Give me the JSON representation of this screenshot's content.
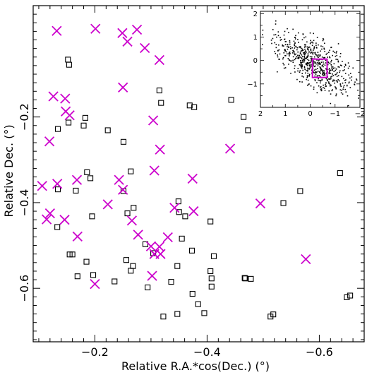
{
  "chart_data": [
    {
      "type": "scatter",
      "xlabel": "Relative R.A.*cos(Dec.) (°)",
      "ylabel": "Relative Dec. (°)",
      "xlim": [
        -0.09,
        -0.68
      ],
      "ylim": [
        -0.725,
        0.06
      ],
      "x_ticks": [
        -0.2,
        -0.4,
        -0.6
      ],
      "x_tick_labels": [
        "−0.2",
        "−0.4",
        "−0.6"
      ],
      "y_ticks": [
        -0.2,
        -0.4,
        -0.6
      ],
      "y_tick_labels": [
        "−0.2",
        "−0.4",
        "−0.6"
      ],
      "grid": false,
      "series": [
        {
          "marker": "open-square",
          "color": "#000000",
          "points": [
            [
              -0.152,
              -0.066
            ],
            [
              -0.154,
              -0.078
            ],
            [
              -0.183,
              -0.202
            ],
            [
              -0.134,
              -0.228
            ],
            [
              -0.153,
              -0.213
            ],
            [
              -0.223,
              -0.231
            ],
            [
              -0.18,
              -0.22
            ],
            [
              -0.318,
              -0.167
            ],
            [
              -0.315,
              -0.138
            ],
            [
              -0.369,
              -0.173
            ],
            [
              -0.377,
              -0.177
            ],
            [
              -0.443,
              -0.16
            ],
            [
              -0.473,
              -0.231
            ],
            [
              -0.465,
              -0.2
            ],
            [
              -0.251,
              -0.258
            ],
            [
              -0.186,
              -0.329
            ],
            [
              -0.134,
              -0.369
            ],
            [
              -0.166,
              -0.372
            ],
            [
              -0.192,
              -0.343
            ],
            [
              -0.264,
              -0.327
            ],
            [
              -0.251,
              -0.373
            ],
            [
              -0.269,
              -0.412
            ],
            [
              -0.258,
              -0.425
            ],
            [
              -0.349,
              -0.397
            ],
            [
              -0.35,
              -0.422
            ],
            [
              -0.361,
              -0.432
            ],
            [
              -0.406,
              -0.444
            ],
            [
              -0.536,
              -0.401
            ],
            [
              -0.566,
              -0.373
            ],
            [
              -0.637,
              -0.331
            ],
            [
              -0.195,
              -0.432
            ],
            [
              -0.133,
              -0.457
            ],
            [
              -0.155,
              -0.521
            ],
            [
              -0.16,
              -0.521
            ],
            [
              -0.185,
              -0.538
            ],
            [
              -0.256,
              -0.534
            ],
            [
              -0.268,
              -0.548
            ],
            [
              -0.264,
              -0.559
            ],
            [
              -0.304,
              -0.518
            ],
            [
              -0.29,
              -0.497
            ],
            [
              -0.355,
              -0.484
            ],
            [
              -0.373,
              -0.512
            ],
            [
              -0.412,
              -0.525
            ],
            [
              -0.347,
              -0.548
            ],
            [
              -0.406,
              -0.56
            ],
            [
              -0.408,
              -0.577
            ],
            [
              -0.408,
              -0.596
            ],
            [
              -0.468,
              -0.577
            ],
            [
              -0.478,
              -0.578
            ],
            [
              -0.467,
              -0.576
            ],
            [
              -0.169,
              -0.572
            ],
            [
              -0.197,
              -0.569
            ],
            [
              -0.235,
              -0.584
            ],
            [
              -0.294,
              -0.598
            ],
            [
              -0.336,
              -0.585
            ],
            [
              -0.374,
              -0.613
            ],
            [
              -0.384,
              -0.637
            ],
            [
              -0.395,
              -0.658
            ],
            [
              -0.347,
              -0.66
            ],
            [
              -0.322,
              -0.666
            ],
            [
              -0.513,
              -0.666
            ],
            [
              -0.518,
              -0.661
            ],
            [
              -0.649,
              -0.621
            ],
            [
              -0.655,
              -0.617
            ]
          ]
        },
        {
          "marker": "cross",
          "color": "#cc00cc",
          "points": [
            [
              -0.132,
              0.001
            ],
            [
              -0.201,
              0.006
            ],
            [
              -0.249,
              -0.004
            ],
            [
              -0.275,
              0.004
            ],
            [
              -0.258,
              -0.024
            ],
            [
              -0.289,
              -0.039
            ],
            [
              -0.315,
              -0.067
            ],
            [
              -0.25,
              -0.131
            ],
            [
              -0.126,
              -0.152
            ],
            [
              -0.147,
              -0.157
            ],
            [
              -0.148,
              -0.187
            ],
            [
              -0.155,
              -0.196
            ],
            [
              -0.304,
              -0.208
            ],
            [
              -0.119,
              -0.257
            ],
            [
              -0.316,
              -0.276
            ],
            [
              -0.441,
              -0.274
            ],
            [
              -0.306,
              -0.325
            ],
            [
              -0.133,
              -0.356
            ],
            [
              -0.168,
              -0.347
            ],
            [
              -0.106,
              -0.361
            ],
            [
              -0.243,
              -0.347
            ],
            [
              -0.374,
              -0.344
            ],
            [
              -0.25,
              -0.37
            ],
            [
              -0.223,
              -0.404
            ],
            [
              -0.342,
              -0.412
            ],
            [
              -0.376,
              -0.42
            ],
            [
              -0.495,
              -0.402
            ],
            [
              -0.12,
              -0.425
            ],
            [
              -0.114,
              -0.439
            ],
            [
              -0.146,
              -0.44
            ],
            [
              -0.266,
              -0.442
            ],
            [
              -0.169,
              -0.479
            ],
            [
              -0.277,
              -0.475
            ],
            [
              -0.33,
              -0.481
            ],
            [
              -0.3,
              -0.502
            ],
            [
              -0.315,
              -0.503
            ],
            [
              -0.306,
              -0.52
            ],
            [
              -0.317,
              -0.52
            ],
            [
              -0.576,
              -0.532
            ],
            [
              -0.302,
              -0.571
            ],
            [
              -0.2,
              -0.59
            ]
          ]
        }
      ]
    },
    {
      "type": "scatter",
      "role": "inset",
      "xlim": [
        2,
        -2
      ],
      "ylim": [
        -2,
        2.1
      ],
      "x_ticks": [
        2,
        1,
        0,
        -1,
        -2
      ],
      "x_tick_labels": [
        "2",
        "1",
        "0",
        "−1",
        "−2"
      ],
      "y_ticks": [
        -1,
        0,
        1,
        2
      ],
      "y_tick_labels": [
        "−1",
        "0",
        "1",
        "2"
      ],
      "highlight_box": {
        "x": [
          -0.09,
          -0.68
        ],
        "y": [
          -0.725,
          0.06
        ],
        "color": "#cc00cc"
      },
      "dot_color": "#000000"
    }
  ]
}
